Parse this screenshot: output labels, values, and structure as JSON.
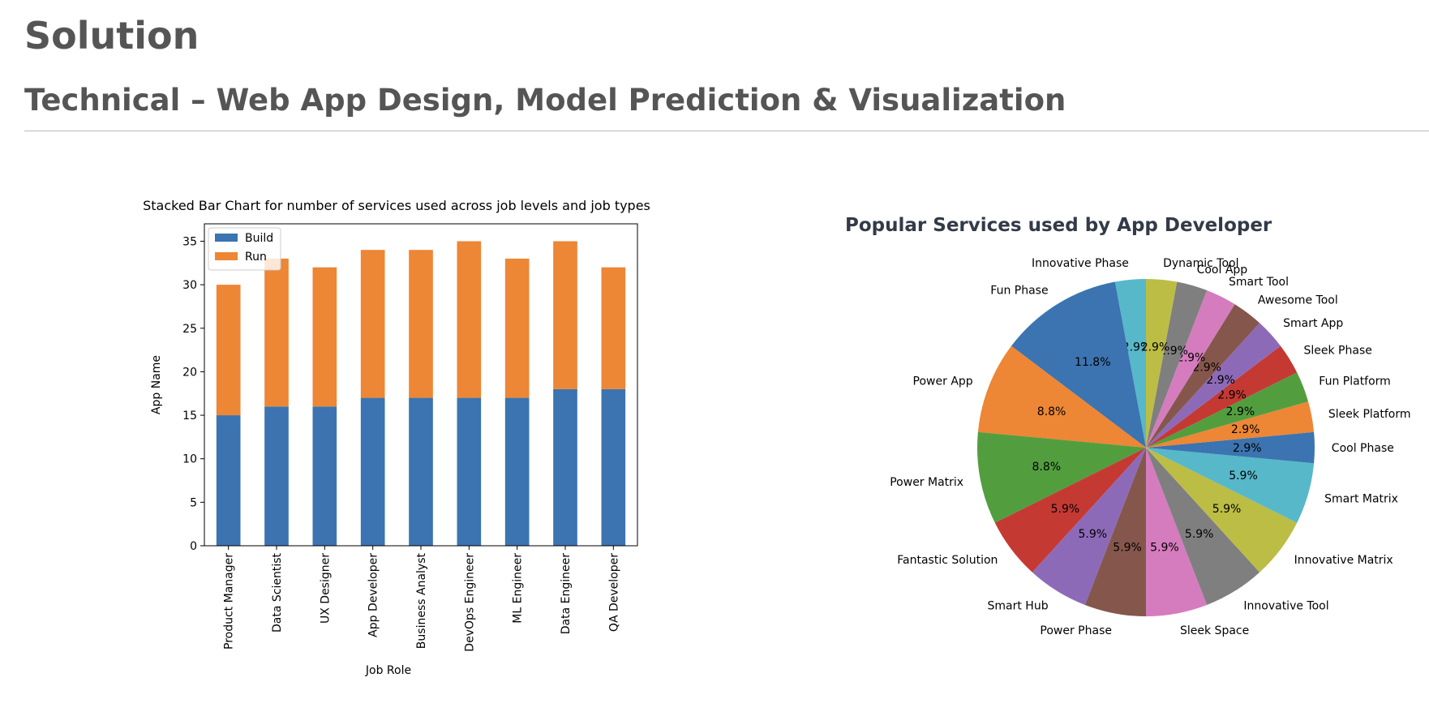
{
  "header": {
    "title": "Solution",
    "subtitle": "Technical – Web App Design, Model Prediction & Visualization"
  },
  "chart_data": [
    {
      "type": "bar",
      "stacked": true,
      "title": "Stacked Bar Chart for number of services used across job levels and job types",
      "xlabel": "Job Role",
      "ylabel": "App Name",
      "categories": [
        "Product Manager",
        "Data Scientist",
        "UX Designer",
        "App Developer",
        "Business Analyst",
        "DevOps Engineer",
        "ML Engineer",
        "Data Engineer",
        "QA Developer"
      ],
      "series": [
        {
          "name": "Build",
          "color": "#3b74b0",
          "values": [
            15,
            16,
            16,
            17,
            17,
            17,
            17,
            18,
            18
          ]
        },
        {
          "name": "Run",
          "color": "#ed8635",
          "values": [
            15,
            17,
            16,
            17,
            17,
            18,
            16,
            17,
            14
          ]
        }
      ],
      "yticks": [
        0,
        5,
        10,
        15,
        20,
        25,
        30,
        35
      ],
      "ylim": [
        0,
        37
      ],
      "legend": "top-left",
      "grid": false
    },
    {
      "type": "pie",
      "title": "Popular Services used by App Developer",
      "start_angle_deg": 90,
      "direction": "counterclockwise",
      "slices": [
        {
          "label": "Innovative Phase",
          "value": 1,
          "pct": "2.9%",
          "color": "#57b8ca"
        },
        {
          "label": "Fun Phase",
          "value": 4,
          "pct": "11.8%",
          "color": "#3b74b0"
        },
        {
          "label": "Power App",
          "value": 3,
          "pct": "8.8%",
          "color": "#ed8635"
        },
        {
          "label": "Power Matrix",
          "value": 3,
          "pct": "8.8%",
          "color": "#529e3f"
        },
        {
          "label": "Fantastic Solution",
          "value": 2,
          "pct": "5.9%",
          "color": "#c53933"
        },
        {
          "label": "Smart Hub",
          "value": 2,
          "pct": "5.9%",
          "color": "#8d6ab8"
        },
        {
          "label": "Power Phase",
          "value": 2,
          "pct": "5.9%",
          "color": "#85574c"
        },
        {
          "label": "Sleek Space",
          "value": 2,
          "pct": "5.9%",
          "color": "#d57cbe"
        },
        {
          "label": "Innovative Tool",
          "value": 2,
          "pct": "5.9%",
          "color": "#7f7f7f"
        },
        {
          "label": "Innovative Matrix",
          "value": 2,
          "pct": "5.9%",
          "color": "#bcbd45"
        },
        {
          "label": "Smart Matrix",
          "value": 2,
          "pct": "5.9%",
          "color": "#57b8ca"
        },
        {
          "label": "Cool Phase",
          "value": 1,
          "pct": "2.9%",
          "color": "#3b74b0"
        },
        {
          "label": "Sleek Platform",
          "value": 1,
          "pct": "2.9%",
          "color": "#ed8635"
        },
        {
          "label": "Fun Platform",
          "value": 1,
          "pct": "2.9%",
          "color": "#529e3f"
        },
        {
          "label": "Sleek Phase",
          "value": 1,
          "pct": "2.9%",
          "color": "#c53933"
        },
        {
          "label": "Smart App",
          "value": 1,
          "pct": "2.9%",
          "color": "#8d6ab8"
        },
        {
          "label": "Awesome Tool",
          "value": 1,
          "pct": "2.9%",
          "color": "#85574c"
        },
        {
          "label": "Smart Tool",
          "value": 1,
          "pct": "2.9%",
          "color": "#d57cbe"
        },
        {
          "label": "Cool App",
          "value": 1,
          "pct": "2.9%",
          "color": "#7f7f7f"
        },
        {
          "label": "Dynamic Tool",
          "value": 1,
          "pct": "2.9%",
          "color": "#bcbd45"
        }
      ]
    }
  ]
}
